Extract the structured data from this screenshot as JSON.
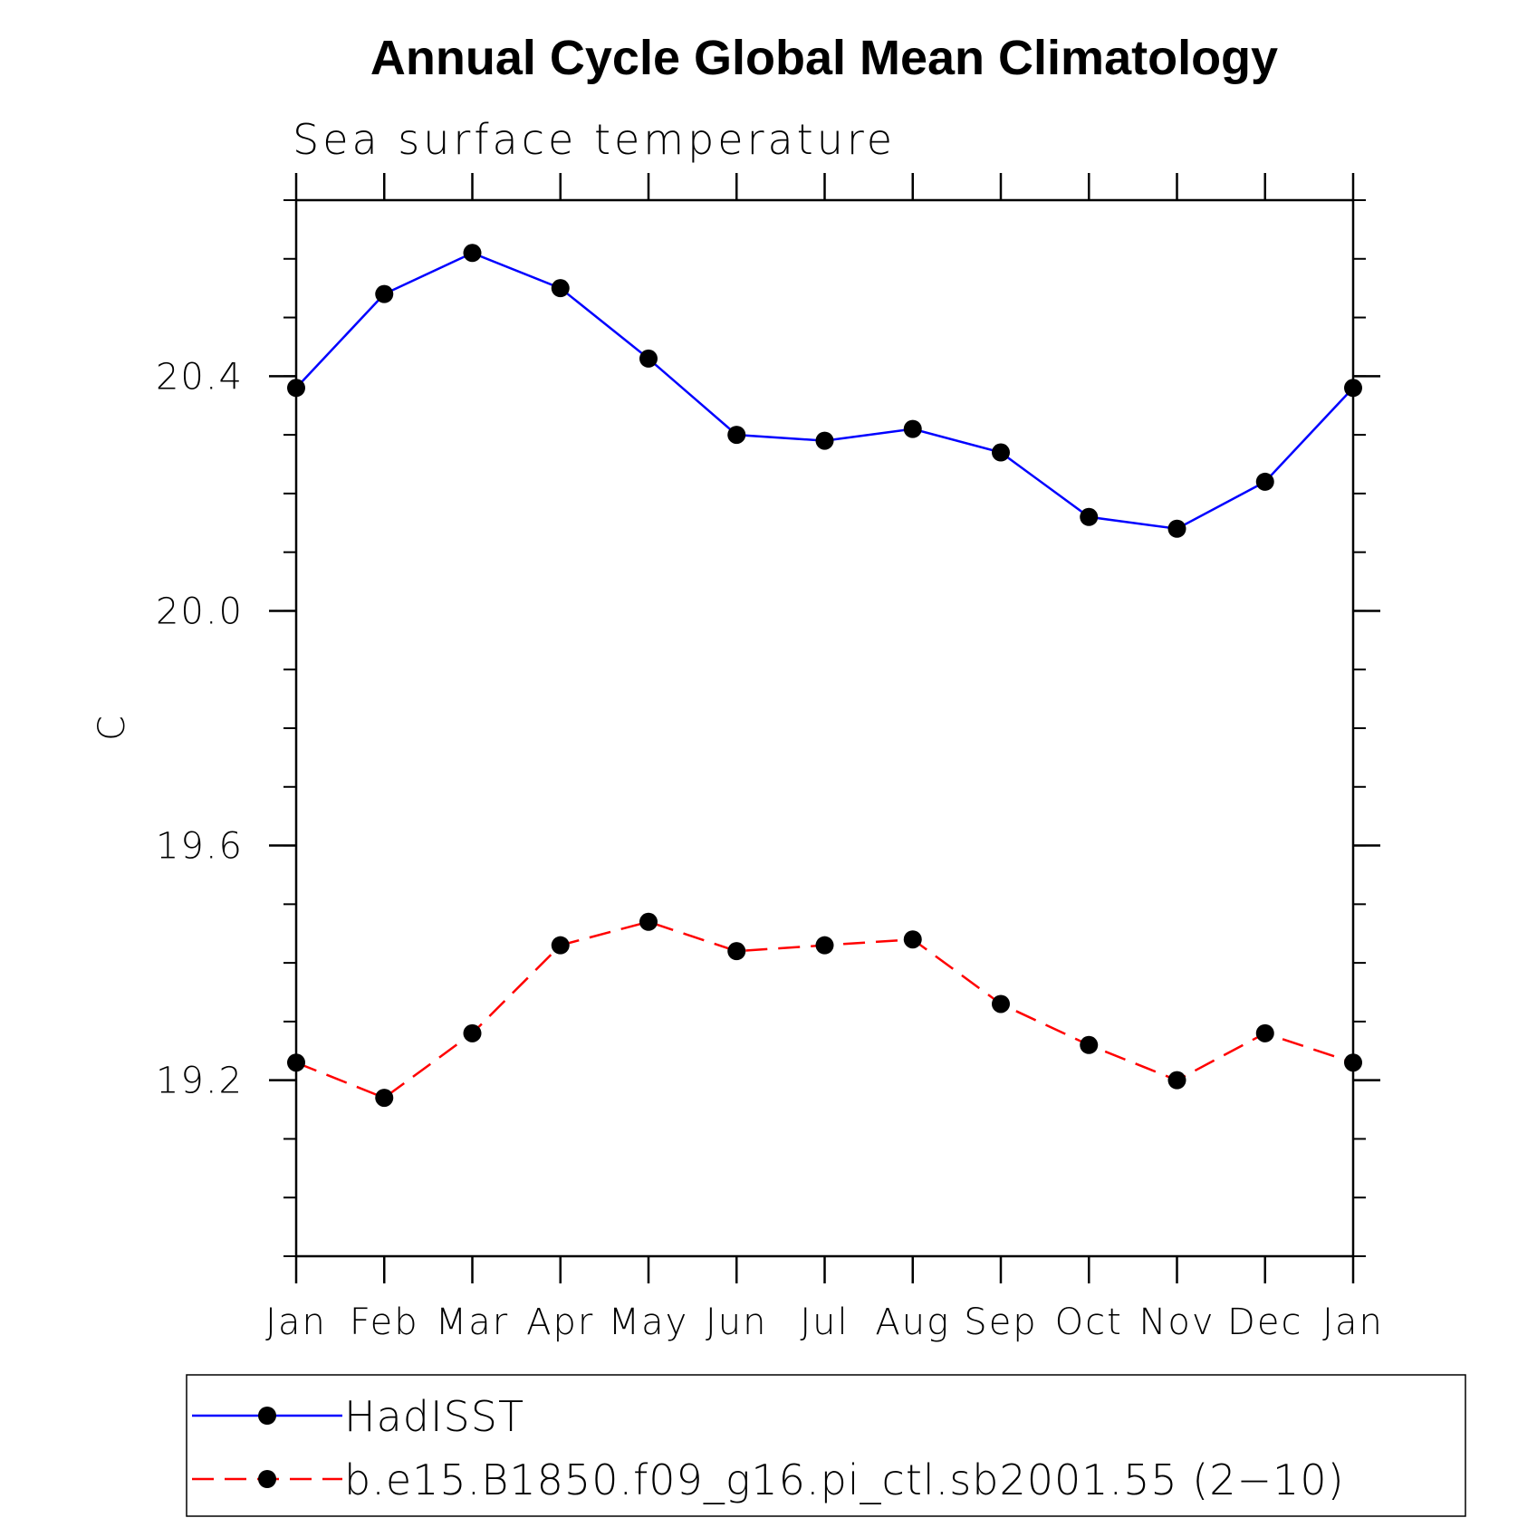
{
  "chart_data": {
    "type": "line",
    "title": "Annual Cycle Global Mean Climatology",
    "subtitle": "Sea surface temperature",
    "xlabel": "",
    "ylabel": "C",
    "categories": [
      "Jan",
      "Feb",
      "Mar",
      "Apr",
      "May",
      "Jun",
      "Jul",
      "Aug",
      "Sep",
      "Oct",
      "Nov",
      "Dec",
      "Jan"
    ],
    "ylim": [
      18.9,
      20.7
    ],
    "y_major_ticks": [
      19.2,
      19.6,
      20.0,
      20.4
    ],
    "y_major_tick_labels": [
      "19.2",
      "19.6",
      "20.0",
      "20.4"
    ],
    "y_minor_step": 0.1,
    "grid": false,
    "legend_position": "bottom",
    "series": [
      {
        "name": "HadISST",
        "color": "#0000ff",
        "line_style": "solid",
        "marker": "filled-circle",
        "values": [
          20.38,
          20.54,
          20.61,
          20.55,
          20.43,
          20.3,
          20.29,
          20.31,
          20.27,
          20.16,
          20.14,
          20.22,
          20.38
        ]
      },
      {
        "name": "b.e15.B1850.f09_g16.pi_ctl.sb2001.55 (2−10)",
        "color": "#ff0000",
        "line_style": "dashed",
        "marker": "filled-circle",
        "values": [
          19.23,
          19.17,
          19.28,
          19.43,
          19.47,
          19.42,
          19.43,
          19.44,
          19.33,
          19.26,
          19.2,
          19.28,
          19.23
        ]
      }
    ]
  }
}
